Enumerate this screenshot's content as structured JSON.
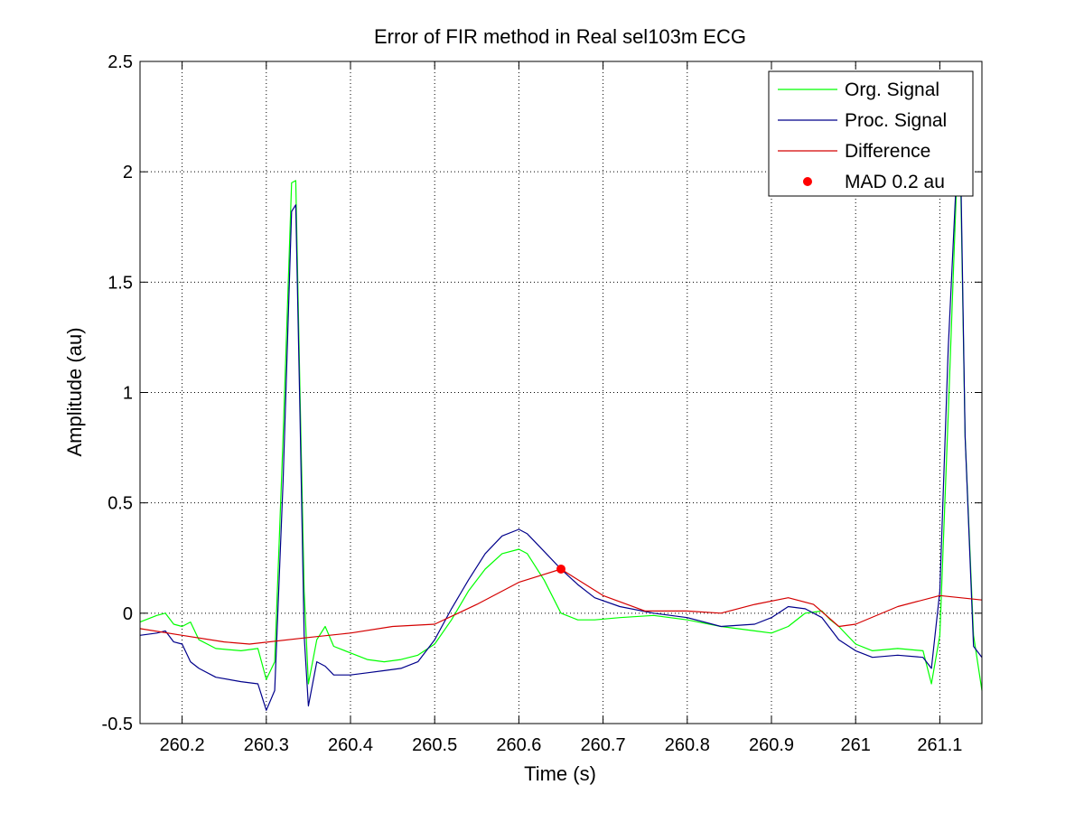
{
  "chart_data": {
    "type": "line",
    "title": "Error of FIR method in Real sel103m ECG",
    "xlabel": "Time (s)",
    "ylabel": "Amplitude (au)",
    "xlim": [
      260.15,
      261.15
    ],
    "ylim": [
      -0.5,
      2.5
    ],
    "xticks": [
      260.2,
      260.3,
      260.4,
      260.5,
      260.6,
      260.7,
      260.8,
      260.9,
      261.0,
      261.1
    ],
    "xtick_labels": [
      "260.2",
      "260.3",
      "260.4",
      "260.5",
      "260.6",
      "260.7",
      "260.8",
      "260.9",
      "261",
      "261.1"
    ],
    "yticks": [
      -0.5,
      0,
      0.5,
      1,
      1.5,
      2,
      2.5
    ],
    "ytick_labels": [
      "-0.5",
      "0",
      "0.5",
      "1",
      "1.5",
      "2",
      "2.5"
    ],
    "grid": true,
    "legend_position": "top-right",
    "series": [
      {
        "name": "Org. Signal",
        "color": "#00ff00",
        "x": [
          260.15,
          260.17,
          260.18,
          260.19,
          260.2,
          260.21,
          260.22,
          260.24,
          260.27,
          260.29,
          260.3,
          260.31,
          260.32,
          260.33,
          260.335,
          260.34,
          260.345,
          260.35,
          260.36,
          260.37,
          260.38,
          260.4,
          260.42,
          260.44,
          260.46,
          260.48,
          260.5,
          260.52,
          260.54,
          260.56,
          260.58,
          260.6,
          260.61,
          260.63,
          260.65,
          260.67,
          260.69,
          260.72,
          260.76,
          260.8,
          260.84,
          260.88,
          260.9,
          260.92,
          260.94,
          260.96,
          260.97,
          260.98,
          261.0,
          261.02,
          261.05,
          261.08,
          261.09,
          261.1,
          261.11,
          261.12,
          261.125,
          261.13,
          261.14,
          261.15
        ],
        "y": [
          -0.04,
          -0.01,
          0.0,
          -0.05,
          -0.06,
          -0.04,
          -0.12,
          -0.16,
          -0.17,
          -0.16,
          -0.3,
          -0.22,
          0.8,
          1.95,
          1.96,
          1.0,
          0.1,
          -0.32,
          -0.12,
          -0.06,
          -0.15,
          -0.18,
          -0.21,
          -0.22,
          -0.21,
          -0.19,
          -0.14,
          -0.03,
          0.1,
          0.2,
          0.27,
          0.29,
          0.27,
          0.15,
          0.0,
          -0.03,
          -0.03,
          -0.02,
          -0.01,
          -0.03,
          -0.06,
          -0.08,
          -0.09,
          -0.06,
          0.0,
          0.01,
          -0.03,
          -0.06,
          -0.14,
          -0.17,
          -0.16,
          -0.17,
          -0.32,
          -0.1,
          0.9,
          1.95,
          1.9,
          0.8,
          -0.1,
          -0.35
        ]
      },
      {
        "name": "Proc. Signal",
        "color": "#00008b",
        "x": [
          260.15,
          260.17,
          260.18,
          260.19,
          260.2,
          260.21,
          260.22,
          260.24,
          260.27,
          260.29,
          260.3,
          260.31,
          260.32,
          260.33,
          260.335,
          260.34,
          260.345,
          260.35,
          260.36,
          260.37,
          260.38,
          260.4,
          260.42,
          260.44,
          260.46,
          260.48,
          260.5,
          260.52,
          260.54,
          260.56,
          260.58,
          260.6,
          260.61,
          260.63,
          260.65,
          260.67,
          260.69,
          260.72,
          260.76,
          260.8,
          260.84,
          260.88,
          260.9,
          260.92,
          260.94,
          260.96,
          260.97,
          260.98,
          261.0,
          261.02,
          261.05,
          261.08,
          261.09,
          261.1,
          261.11,
          261.12,
          261.125,
          261.13,
          261.14,
          261.15
        ],
        "y": [
          -0.1,
          -0.09,
          -0.08,
          -0.13,
          -0.14,
          -0.22,
          -0.25,
          -0.29,
          -0.31,
          -0.32,
          -0.44,
          -0.35,
          0.6,
          1.82,
          1.85,
          0.9,
          -0.1,
          -0.42,
          -0.22,
          -0.24,
          -0.28,
          -0.28,
          -0.27,
          -0.26,
          -0.25,
          -0.22,
          -0.12,
          0.02,
          0.15,
          0.27,
          0.35,
          0.38,
          0.36,
          0.28,
          0.2,
          0.13,
          0.07,
          0.03,
          0.0,
          -0.02,
          -0.06,
          -0.05,
          -0.02,
          0.03,
          0.02,
          -0.02,
          -0.07,
          -0.12,
          -0.17,
          -0.2,
          -0.19,
          -0.2,
          -0.25,
          0.1,
          1.2,
          2.0,
          1.98,
          0.8,
          -0.15,
          -0.2
        ]
      },
      {
        "name": "Difference",
        "color": "#d40000",
        "x": [
          260.15,
          260.2,
          260.25,
          260.28,
          260.35,
          260.4,
          260.45,
          260.5,
          260.55,
          260.6,
          260.65,
          260.7,
          260.75,
          260.8,
          260.84,
          260.88,
          260.92,
          260.95,
          260.98,
          261.0,
          261.05,
          261.1,
          261.15
        ],
        "y": [
          -0.07,
          -0.1,
          -0.13,
          -0.14,
          -0.11,
          -0.09,
          -0.06,
          -0.05,
          0.04,
          0.14,
          0.2,
          0.08,
          0.01,
          0.01,
          0.0,
          0.04,
          0.07,
          0.04,
          -0.06,
          -0.05,
          0.03,
          0.08,
          0.06
        ]
      }
    ],
    "markers": [
      {
        "name": "MAD 0.2 au",
        "x": 260.65,
        "y": 0.2,
        "color": "#ff0000"
      }
    ]
  }
}
